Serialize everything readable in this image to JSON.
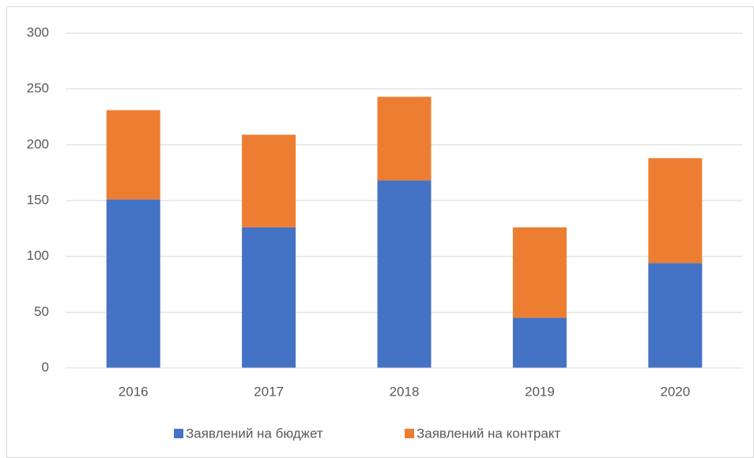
{
  "chart_data": {
    "type": "stacked_bar",
    "categories": [
      "2016",
      "2017",
      "2018",
      "2019",
      "2020"
    ],
    "series": [
      {
        "name": "Заявлений на бюджет",
        "color": "#4472c4",
        "values": [
          151,
          126,
          168,
          45,
          94
        ]
      },
      {
        "name": "Заявлений на контракт",
        "color": "#ed7d31",
        "values": [
          80,
          83,
          75,
          81,
          94
        ]
      }
    ],
    "ylim": [
      0,
      300
    ],
    "yticks": [
      0,
      50,
      100,
      150,
      200,
      250,
      300
    ],
    "grid": true,
    "legend": "bottom"
  }
}
